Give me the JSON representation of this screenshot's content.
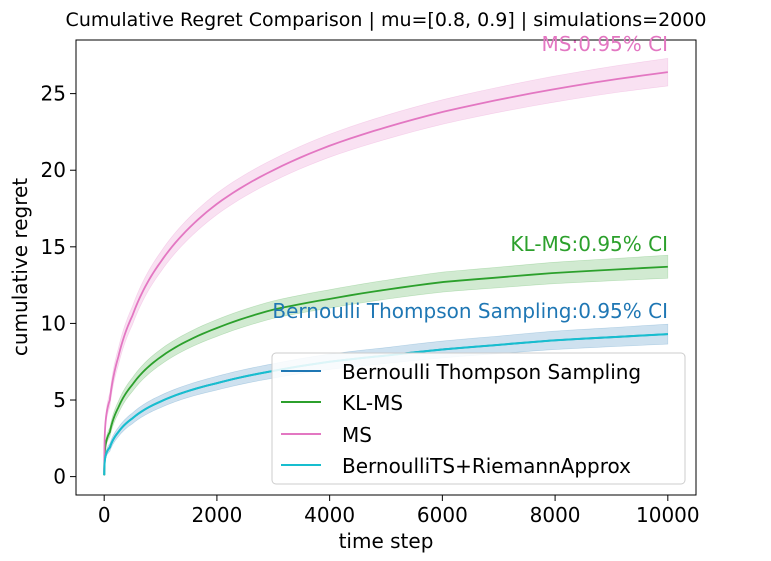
{
  "chart_data": {
    "type": "line",
    "title": "Cumulative Regret Comparison | mu=[0.8, 0.9] | simulations=2000",
    "xlabel": "time step",
    "ylabel": "cumulative regret",
    "xlim": [
      -500,
      10500
    ],
    "ylim": [
      -1.2,
      28.5
    ],
    "xticks": [
      0,
      2000,
      4000,
      6000,
      8000,
      10000
    ],
    "xtick_labels": [
      "0",
      "2000",
      "4000",
      "6000",
      "8000",
      "10000"
    ],
    "yticks": [
      0,
      5,
      10,
      15,
      20,
      25
    ],
    "ytick_labels": [
      "0",
      "5",
      "10",
      "15",
      "20",
      "25"
    ],
    "grid": false,
    "legend_position": "lower-right",
    "x": [
      1,
      100,
      250,
      500,
      1000,
      1500,
      2000,
      3000,
      4000,
      5000,
      6000,
      7000,
      8000,
      9000,
      10000
    ],
    "series": [
      {
        "name": "Bernoulli Thompson Sampling",
        "color": "#1f77b4",
        "values": [
          0.1,
          1.9,
          2.9,
          3.8,
          4.9,
          5.6,
          6.1,
          6.9,
          7.5,
          7.9,
          8.3,
          8.6,
          8.9,
          9.1,
          9.3
        ],
        "ci_halfwidth": [
          0.05,
          0.25,
          0.3,
          0.35,
          0.4,
          0.42,
          0.45,
          0.47,
          0.5,
          0.52,
          0.55,
          0.57,
          0.6,
          0.62,
          0.65
        ]
      },
      {
        "name": "KL-MS",
        "color": "#2ca02c",
        "values": [
          0.1,
          2.9,
          4.5,
          6.0,
          7.8,
          8.9,
          9.7,
          10.9,
          11.6,
          12.2,
          12.7,
          13.0,
          13.3,
          13.5,
          13.7
        ],
        "ci_halfwidth": [
          0.05,
          0.3,
          0.4,
          0.45,
          0.5,
          0.52,
          0.55,
          0.57,
          0.6,
          0.62,
          0.65,
          0.67,
          0.7,
          0.72,
          0.75
        ]
      },
      {
        "name": "MS",
        "color": "#e377c2",
        "values": [
          0.3,
          5.0,
          7.8,
          10.5,
          14.0,
          16.2,
          17.8,
          20.0,
          21.6,
          22.8,
          23.8,
          24.6,
          25.3,
          25.9,
          26.4
        ],
        "ci_halfwidth": [
          0.1,
          0.45,
          0.55,
          0.6,
          0.65,
          0.68,
          0.7,
          0.72,
          0.75,
          0.78,
          0.8,
          0.82,
          0.85,
          0.87,
          0.9
        ]
      },
      {
        "name": "BernoulliTS+RiemannApprox",
        "color": "#17becf",
        "values": [
          0.1,
          1.9,
          2.9,
          3.8,
          4.9,
          5.6,
          6.1,
          6.9,
          7.5,
          7.9,
          8.3,
          8.6,
          8.9,
          9.1,
          9.3
        ],
        "ci_halfwidth": [
          0.05,
          0.25,
          0.3,
          0.35,
          0.4,
          0.42,
          0.45,
          0.47,
          0.5,
          0.52,
          0.55,
          0.57,
          0.6,
          0.62,
          0.65
        ]
      }
    ],
    "annotations": [
      {
        "text": "MS:0.95% CI",
        "series": "MS",
        "color": "#e377c2"
      },
      {
        "text": "KL-MS:0.95% CI",
        "series": "KL-MS",
        "color": "#2ca02c"
      },
      {
        "text": "Bernoulli Thompson Sampling:0.95% CI",
        "series": "Bernoulli Thompson Sampling",
        "color": "#1f77b4"
      }
    ]
  }
}
